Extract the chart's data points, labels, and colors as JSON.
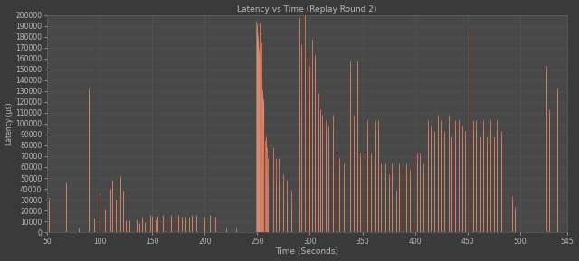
{
  "title": "Latency vs Time (Replay Round 2)",
  "xlabel": "Time (Seconds)",
  "ylabel": "Latency (µs)",
  "bg_color": "#3a3a3a",
  "plot_bg_color": "#484848",
  "grid_color": "#606060",
  "text_color": "#bbbbbb",
  "ylim": [
    0,
    200000
  ],
  "xlim": [
    50,
    545
  ],
  "ytick_step": 10000,
  "xticks": [
    50,
    100,
    150,
    200,
    250,
    300,
    350,
    400,
    450,
    500,
    545
  ],
  "round1_color": "#5ab8b8",
  "round2_color": "#e07858",
  "round3_color": "#c8b88a",
  "lw": 0.7,
  "series_r1": [
    [
      52,
      28000
    ],
    [
      68,
      44000
    ],
    [
      80,
      2000
    ],
    [
      90,
      130000
    ],
    [
      95,
      11000
    ],
    [
      100,
      34000
    ],
    [
      105,
      20000
    ],
    [
      110,
      38000
    ],
    [
      112,
      46000
    ],
    [
      115,
      28000
    ],
    [
      120,
      50000
    ],
    [
      122,
      36000
    ],
    [
      125,
      9000
    ],
    [
      128,
      9000
    ],
    [
      135,
      10000
    ],
    [
      138,
      6000
    ],
    [
      140,
      12000
    ],
    [
      143,
      7000
    ],
    [
      148,
      14000
    ],
    [
      150,
      13000
    ],
    [
      153,
      10000
    ],
    [
      155,
      13000
    ],
    [
      160,
      14000
    ],
    [
      163,
      12000
    ],
    [
      168,
      14000
    ],
    [
      172,
      15000
    ],
    [
      175,
      14000
    ],
    [
      178,
      12000
    ],
    [
      182,
      12000
    ],
    [
      185,
      12000
    ],
    [
      188,
      14000
    ],
    [
      192,
      14000
    ],
    [
      200,
      12000
    ],
    [
      205,
      14000
    ],
    [
      210,
      12000
    ],
    [
      220,
      2000
    ],
    [
      230,
      2000
    ],
    [
      252,
      125000
    ],
    [
      255,
      75000
    ],
    [
      258,
      55000
    ],
    [
      260,
      44000
    ],
    [
      265,
      48000
    ],
    [
      268,
      42000
    ],
    [
      270,
      42000
    ],
    [
      275,
      38000
    ],
    [
      278,
      28000
    ],
    [
      282,
      22000
    ],
    [
      290,
      125000
    ],
    [
      292,
      105000
    ],
    [
      295,
      150000
    ],
    [
      298,
      128000
    ],
    [
      300,
      120000
    ],
    [
      302,
      150000
    ],
    [
      305,
      158000
    ],
    [
      308,
      103000
    ],
    [
      310,
      108000
    ],
    [
      312,
      98000
    ],
    [
      315,
      93000
    ],
    [
      318,
      88000
    ],
    [
      322,
      98000
    ],
    [
      325,
      63000
    ],
    [
      328,
      58000
    ],
    [
      332,
      52000
    ],
    [
      338,
      143000
    ],
    [
      342,
      93000
    ],
    [
      345,
      152000
    ],
    [
      348,
      63000
    ],
    [
      352,
      63000
    ],
    [
      355,
      93000
    ],
    [
      358,
      63000
    ],
    [
      362,
      93000
    ],
    [
      365,
      93000
    ],
    [
      368,
      53000
    ],
    [
      372,
      53000
    ],
    [
      375,
      43000
    ],
    [
      378,
      53000
    ],
    [
      382,
      28000
    ],
    [
      385,
      53000
    ],
    [
      388,
      48000
    ],
    [
      392,
      53000
    ],
    [
      395,
      48000
    ],
    [
      398,
      53000
    ],
    [
      402,
      63000
    ],
    [
      405,
      63000
    ],
    [
      408,
      53000
    ],
    [
      412,
      93000
    ],
    [
      415,
      88000
    ],
    [
      418,
      83000
    ],
    [
      422,
      98000
    ],
    [
      425,
      93000
    ],
    [
      428,
      83000
    ],
    [
      432,
      98000
    ],
    [
      435,
      78000
    ],
    [
      438,
      93000
    ],
    [
      442,
      93000
    ],
    [
      445,
      88000
    ],
    [
      448,
      83000
    ],
    [
      452,
      183000
    ],
    [
      455,
      93000
    ],
    [
      458,
      93000
    ],
    [
      462,
      78000
    ],
    [
      465,
      93000
    ],
    [
      468,
      78000
    ],
    [
      472,
      93000
    ],
    [
      475,
      78000
    ],
    [
      478,
      93000
    ],
    [
      482,
      83000
    ],
    [
      492,
      28000
    ],
    [
      495,
      18000
    ],
    [
      525,
      148000
    ],
    [
      528,
      108000
    ],
    [
      535,
      128000
    ]
  ],
  "series_r2": [
    [
      52,
      32000
    ],
    [
      68,
      46000
    ],
    [
      80,
      4000
    ],
    [
      90,
      133000
    ],
    [
      95,
      13000
    ],
    [
      100,
      36000
    ],
    [
      105,
      22000
    ],
    [
      110,
      40000
    ],
    [
      112,
      48000
    ],
    [
      115,
      30000
    ],
    [
      120,
      52000
    ],
    [
      122,
      38000
    ],
    [
      125,
      11000
    ],
    [
      128,
      11000
    ],
    [
      135,
      12000
    ],
    [
      138,
      8000
    ],
    [
      140,
      14000
    ],
    [
      143,
      9000
    ],
    [
      148,
      16000
    ],
    [
      150,
      15000
    ],
    [
      153,
      12000
    ],
    [
      155,
      15000
    ],
    [
      160,
      16000
    ],
    [
      163,
      14000
    ],
    [
      168,
      16000
    ],
    [
      172,
      17000
    ],
    [
      175,
      16000
    ],
    [
      178,
      14000
    ],
    [
      182,
      14000
    ],
    [
      185,
      14000
    ],
    [
      188,
      16000
    ],
    [
      192,
      16000
    ],
    [
      200,
      14000
    ],
    [
      205,
      16000
    ],
    [
      210,
      14000
    ],
    [
      220,
      4000
    ],
    [
      230,
      4000
    ],
    [
      252,
      193000
    ],
    [
      253,
      185000
    ],
    [
      254,
      175000
    ],
    [
      255,
      108000
    ],
    [
      256,
      98000
    ],
    [
      257,
      85000
    ],
    [
      258,
      88000
    ],
    [
      259,
      78000
    ],
    [
      260,
      68000
    ],
    [
      265,
      78000
    ],
    [
      268,
      68000
    ],
    [
      270,
      68000
    ],
    [
      275,
      53000
    ],
    [
      278,
      48000
    ],
    [
      282,
      38000
    ],
    [
      290,
      198000
    ],
    [
      292,
      173000
    ],
    [
      295,
      208000
    ],
    [
      298,
      163000
    ],
    [
      300,
      153000
    ],
    [
      302,
      178000
    ],
    [
      305,
      163000
    ],
    [
      308,
      128000
    ],
    [
      310,
      113000
    ],
    [
      312,
      108000
    ],
    [
      315,
      103000
    ],
    [
      318,
      98000
    ],
    [
      322,
      108000
    ],
    [
      325,
      73000
    ],
    [
      328,
      68000
    ],
    [
      332,
      63000
    ],
    [
      338,
      158000
    ],
    [
      342,
      108000
    ],
    [
      345,
      158000
    ],
    [
      348,
      73000
    ],
    [
      352,
      73000
    ],
    [
      355,
      103000
    ],
    [
      358,
      73000
    ],
    [
      362,
      103000
    ],
    [
      365,
      103000
    ],
    [
      368,
      63000
    ],
    [
      372,
      63000
    ],
    [
      375,
      53000
    ],
    [
      378,
      63000
    ],
    [
      382,
      38000
    ],
    [
      385,
      63000
    ],
    [
      388,
      58000
    ],
    [
      392,
      63000
    ],
    [
      395,
      58000
    ],
    [
      398,
      63000
    ],
    [
      402,
      73000
    ],
    [
      405,
      73000
    ],
    [
      408,
      63000
    ],
    [
      412,
      103000
    ],
    [
      415,
      98000
    ],
    [
      418,
      93000
    ],
    [
      422,
      108000
    ],
    [
      425,
      103000
    ],
    [
      428,
      93000
    ],
    [
      432,
      108000
    ],
    [
      435,
      88000
    ],
    [
      438,
      103000
    ],
    [
      442,
      103000
    ],
    [
      445,
      98000
    ],
    [
      448,
      93000
    ],
    [
      452,
      188000
    ],
    [
      455,
      103000
    ],
    [
      458,
      103000
    ],
    [
      462,
      88000
    ],
    [
      465,
      103000
    ],
    [
      468,
      88000
    ],
    [
      472,
      103000
    ],
    [
      475,
      88000
    ],
    [
      478,
      103000
    ],
    [
      482,
      93000
    ],
    [
      492,
      33000
    ],
    [
      495,
      23000
    ],
    [
      525,
      153000
    ],
    [
      528,
      113000
    ],
    [
      535,
      133000
    ]
  ],
  "series_r3": [
    [
      52,
      30000
    ],
    [
      68,
      45000
    ],
    [
      80,
      3000
    ],
    [
      90,
      131000
    ],
    [
      95,
      12000
    ],
    [
      100,
      35000
    ],
    [
      105,
      21000
    ],
    [
      110,
      39000
    ],
    [
      112,
      47000
    ],
    [
      115,
      29000
    ],
    [
      120,
      51000
    ],
    [
      122,
      37000
    ],
    [
      125,
      10000
    ],
    [
      128,
      10000
    ],
    [
      135,
      11000
    ],
    [
      138,
      7000
    ],
    [
      140,
      13000
    ],
    [
      143,
      8000
    ],
    [
      148,
      15000
    ],
    [
      150,
      14000
    ],
    [
      153,
      11000
    ],
    [
      155,
      14000
    ],
    [
      160,
      15000
    ],
    [
      163,
      13000
    ],
    [
      168,
      15000
    ],
    [
      172,
      16000
    ],
    [
      175,
      15000
    ],
    [
      178,
      13000
    ],
    [
      182,
      13000
    ],
    [
      185,
      13000
    ],
    [
      188,
      15000
    ],
    [
      192,
      15000
    ],
    [
      200,
      13000
    ],
    [
      205,
      15000
    ],
    [
      210,
      13000
    ],
    [
      220,
      3000
    ],
    [
      230,
      3000
    ],
    [
      252,
      122000
    ],
    [
      255,
      78000
    ],
    [
      258,
      58000
    ],
    [
      260,
      45000
    ],
    [
      265,
      49000
    ],
    [
      268,
      44000
    ],
    [
      270,
      44000
    ],
    [
      275,
      39000
    ],
    [
      278,
      29000
    ],
    [
      282,
      23000
    ],
    [
      290,
      122000
    ],
    [
      292,
      102000
    ],
    [
      295,
      152000
    ],
    [
      298,
      129000
    ],
    [
      300,
      121000
    ],
    [
      302,
      152000
    ],
    [
      305,
      159000
    ],
    [
      308,
      104000
    ],
    [
      310,
      109000
    ],
    [
      312,
      99000
    ],
    [
      315,
      94000
    ],
    [
      318,
      89000
    ],
    [
      322,
      99000
    ],
    [
      325,
      64000
    ],
    [
      328,
      59000
    ],
    [
      332,
      53000
    ],
    [
      338,
      144000
    ],
    [
      342,
      94000
    ],
    [
      345,
      153000
    ],
    [
      348,
      64000
    ],
    [
      352,
      64000
    ],
    [
      355,
      94000
    ],
    [
      358,
      64000
    ],
    [
      362,
      94000
    ],
    [
      365,
      94000
    ],
    [
      368,
      54000
    ],
    [
      372,
      54000
    ],
    [
      375,
      44000
    ],
    [
      378,
      54000
    ],
    [
      382,
      29000
    ],
    [
      385,
      54000
    ],
    [
      388,
      49000
    ],
    [
      392,
      54000
    ],
    [
      395,
      49000
    ],
    [
      398,
      54000
    ],
    [
      402,
      64000
    ],
    [
      405,
      64000
    ],
    [
      408,
      54000
    ],
    [
      412,
      94000
    ],
    [
      415,
      89000
    ],
    [
      418,
      84000
    ],
    [
      422,
      99000
    ],
    [
      425,
      94000
    ],
    [
      428,
      84000
    ],
    [
      432,
      99000
    ],
    [
      435,
      79000
    ],
    [
      438,
      94000
    ],
    [
      442,
      94000
    ],
    [
      445,
      89000
    ],
    [
      448,
      84000
    ],
    [
      452,
      184000
    ],
    [
      455,
      94000
    ],
    [
      458,
      94000
    ],
    [
      462,
      79000
    ],
    [
      465,
      94000
    ],
    [
      468,
      79000
    ],
    [
      472,
      94000
    ],
    [
      475,
      79000
    ],
    [
      478,
      94000
    ],
    [
      482,
      84000
    ],
    [
      492,
      29000
    ],
    [
      495,
      19000
    ],
    [
      525,
      149000
    ],
    [
      528,
      109000
    ],
    [
      535,
      129000
    ]
  ],
  "cluster_x_start": 249,
  "cluster_x_end": 256,
  "cluster_color": "#d4907a",
  "cluster_alpha": 0.6
}
